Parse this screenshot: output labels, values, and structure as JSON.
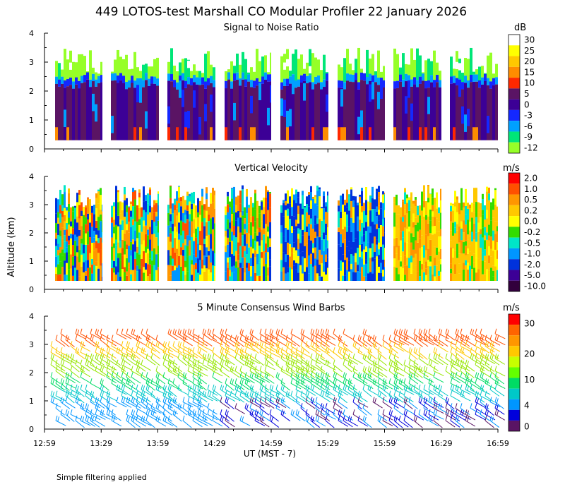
{
  "title": "449 LOTOS-test Marshall CO Modular Profiler 22 January 2026",
  "footnote": "Simple filtering applied",
  "ylabel": "Altitude (km)",
  "xlabel": "UT  (MST - 7)",
  "chart_data": [
    {
      "type": "heatmap",
      "title": "Signal to Noise Ratio",
      "units": "dB",
      "ylim": [
        0,
        4
      ],
      "yticks": [
        "0",
        "1",
        "2",
        "3",
        "4"
      ],
      "x_tick_labels": [
        "12:59",
        "13:29",
        "13:59",
        "14:29",
        "14:59",
        "15:29",
        "15:59",
        "16:29",
        "16:59"
      ],
      "colorbar_labels": [
        "30",
        "25",
        "20",
        "15",
        "10",
        "5",
        "0",
        "-3",
        "-6",
        "-9",
        "-12"
      ],
      "colorbar_colors": [
        "#ffffff",
        "#ffff00",
        "#ffc800",
        "#ff8c00",
        "#ff2800",
        "#5a1464",
        "#3c0096",
        "#1428ff",
        "#00a0ff",
        "#00e678",
        "#96ff28"
      ],
      "data_segments": [
        {
          "start": "13:00",
          "end": "13:24"
        },
        {
          "start": "13:30",
          "end": "13:54"
        },
        {
          "start": "14:00",
          "end": "14:24"
        },
        {
          "start": "14:30",
          "end": "14:54"
        },
        {
          "start": "15:00",
          "end": "15:24"
        },
        {
          "start": "15:30",
          "end": "15:54"
        },
        {
          "start": "16:00",
          "end": "16:24"
        },
        {
          "start": "16:30",
          "end": "16:54"
        }
      ]
    },
    {
      "type": "heatmap",
      "title": "Vertical Velocity",
      "units": "m/s",
      "ylim": [
        0,
        4
      ],
      "yticks": [
        "0",
        "1",
        "2",
        "3",
        "4"
      ],
      "x_tick_labels": [
        "12:59",
        "13:29",
        "13:59",
        "14:29",
        "14:59",
        "15:29",
        "15:59",
        "16:29",
        "16:59"
      ],
      "colorbar_labels": [
        "2.0",
        "1.0",
        "0.5",
        "0.2",
        "0.0",
        "-0.2",
        "-0.5",
        "-1.0",
        "-2.0",
        "-5.0",
        "-10.0"
      ],
      "colorbar_colors": [
        "#ff0000",
        "#ff5000",
        "#ff9600",
        "#ffc800",
        "#ffff00",
        "#32dc00",
        "#00e6c8",
        "#0096ff",
        "#0032dc",
        "#3c0096",
        "#32003c"
      ]
    },
    {
      "type": "wind-barbs",
      "title": "5 Minute Consensus Wind Barbs",
      "units": "m/s",
      "ylim": [
        0,
        4
      ],
      "yticks": [
        "0",
        "1",
        "2",
        "3",
        "4"
      ],
      "x_tick_labels": [
        "12:59",
        "13:29",
        "13:59",
        "14:29",
        "14:59",
        "15:29",
        "15:59",
        "16:29",
        "16:59"
      ],
      "colorbar_labels": [
        "30",
        "20",
        "10",
        "4",
        "0"
      ],
      "colorbar_colors": [
        "#ff0000",
        "#ff6400",
        "#ff9600",
        "#ffc800",
        "#c8ff00",
        "#64ff00",
        "#00dc64",
        "#00c8c8",
        "#0096ff",
        "#0000dc",
        "#5a1464"
      ]
    }
  ]
}
